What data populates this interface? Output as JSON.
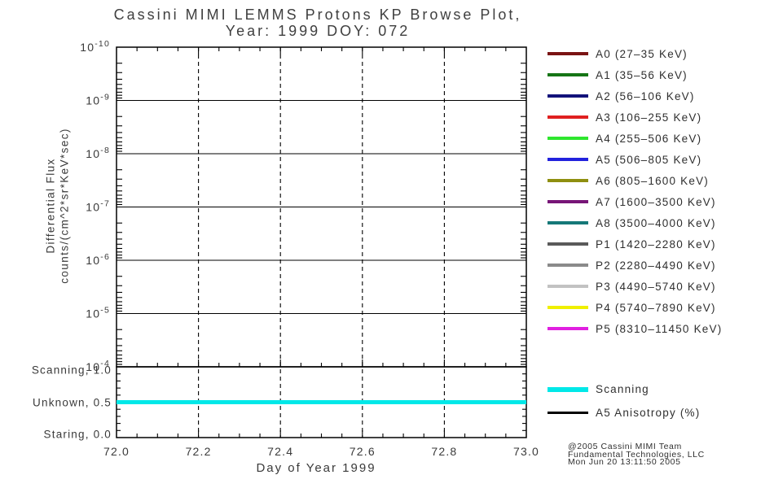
{
  "title": {
    "line1": "Cassini MIMI LEMMS Protons KP Browse Plot,",
    "line2": "Year: 1999 DOY: 072"
  },
  "chart_data": {
    "type": "line",
    "title": "Cassini MIMI LEMMS Protons KP Browse Plot, Year: 1999 DOY: 072",
    "xlabel": "Day of Year 1999",
    "ylabel": [
      "Differential Flux",
      "counts/(cm^2*sr*KeV*sec)"
    ],
    "xlim": [
      72.0,
      73.0
    ],
    "x_major_ticks": [
      72.0,
      72.2,
      72.4,
      72.6,
      72.8,
      73.0
    ],
    "x_minor_step": 0.05,
    "y_scale": "log",
    "y_direction": "exponent increases downward",
    "y_decade_exponents": [
      -10,
      -9,
      -8,
      -7,
      -6,
      -5,
      -4
    ],
    "grid": {
      "vertical": "dashed",
      "horizontal": "solid"
    },
    "legend_position": "right",
    "flux_series": [],
    "mode_panel": {
      "ylim": [
        0.0,
        1.0
      ],
      "y_minor_step": 0.1,
      "levels": [
        {
          "label": "Scanning, 1.0",
          "value": 1.0
        },
        {
          "label": "Unknown, 0.5",
          "value": 0.5
        },
        {
          "label": "Staring, 0.0",
          "value": 0.0
        }
      ],
      "series": [
        {
          "name": "Scanning",
          "color": "#00e8e8",
          "x": [
            72.0,
            73.0
          ],
          "y": [
            0.5,
            0.5
          ],
          "width": 5
        }
      ]
    }
  },
  "legend": {
    "channels": [
      {
        "label": "A0 (27–35 KeV)",
        "color": "#7a1414"
      },
      {
        "label": "A1 (35–56 KeV)",
        "color": "#167516"
      },
      {
        "label": "A2 (56–106 KeV)",
        "color": "#12127a"
      },
      {
        "label": "A3 (106–255 KeV)",
        "color": "#e02020"
      },
      {
        "label": "A4 (255–506 KeV)",
        "color": "#2ee62e"
      },
      {
        "label": "A5 (506–805 KeV)",
        "color": "#2222dd"
      },
      {
        "label": "A6 (805–1600 KeV)",
        "color": "#8f8f10"
      },
      {
        "label": "A7 (1600–3500 KeV)",
        "color": "#771577"
      },
      {
        "label": "A8 (3500–4000 KeV)",
        "color": "#157878"
      },
      {
        "label": "P1 (1420–2280 KeV)",
        "color": "#5a5a5a"
      },
      {
        "label": "P2 (2280–4490 KeV)",
        "color": "#8a8a8a"
      },
      {
        "label": "P3 (4490–5740 KeV)",
        "color": "#c2c2c2"
      },
      {
        "label": "P4 (5740–7890 KeV)",
        "color": "#f0f000"
      },
      {
        "label": "P5 (8310–11450 KeV)",
        "color": "#e020e0"
      }
    ],
    "mode_entries": [
      {
        "label": "Scanning",
        "color": "#00e8e8",
        "thickness": 6
      },
      {
        "label": "A5 Anisotropy (%)",
        "color": "#000000",
        "thickness": 3
      }
    ]
  },
  "credit": {
    "line1": "@2005 Cassini MIMI Team",
    "line2": "Fundamental Technologies, LLC",
    "line3": "Mon Jun 20 13:11:50 2005"
  }
}
